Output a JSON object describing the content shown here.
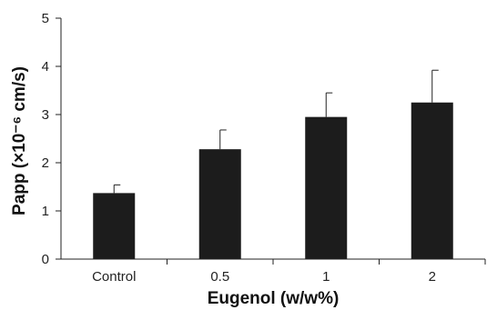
{
  "chart_data": {
    "type": "bar",
    "title": "",
    "xlabel": "Eugenol (w/w%)",
    "ylabel": "Papp (×10⁻⁶ cm/s)",
    "categories": [
      "Control",
      "0.5",
      "1",
      "2"
    ],
    "values": [
      1.37,
      2.28,
      2.95,
      3.25
    ],
    "error_plus": [
      0.17,
      0.4,
      0.5,
      0.67
    ],
    "ylim": [
      0,
      5
    ],
    "yticks": [
      "0",
      "1",
      "2",
      "3",
      "4",
      "5"
    ],
    "grid": false,
    "bar_color": "#1c1c1c",
    "axis_color": "#222222"
  }
}
